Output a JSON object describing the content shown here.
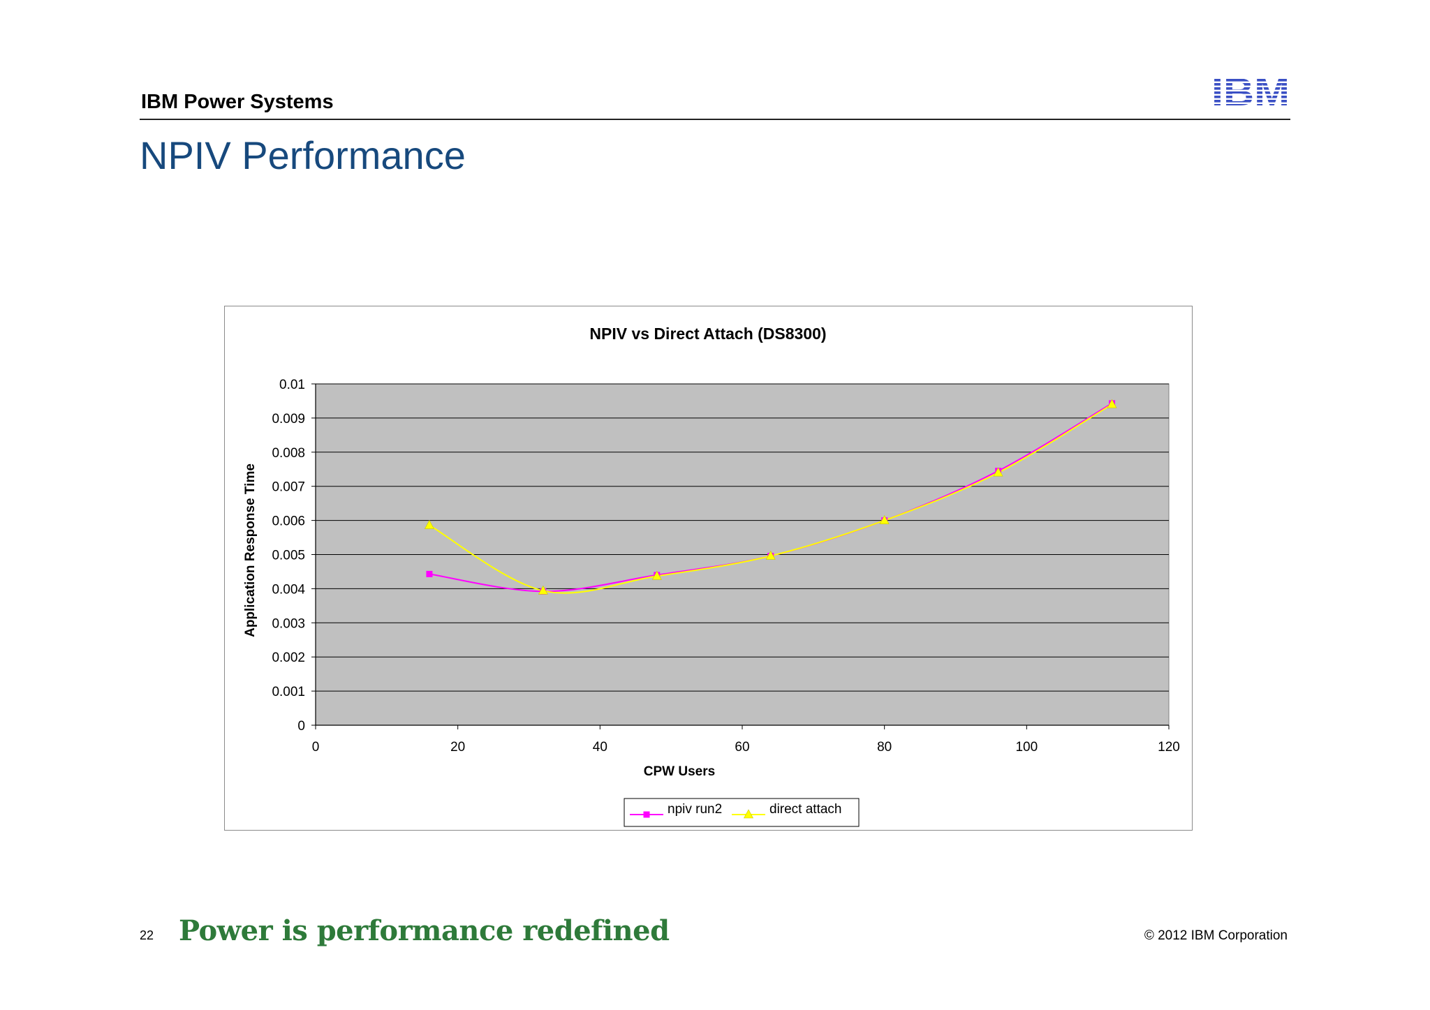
{
  "header": {
    "section": "IBM Power Systems",
    "logo_text": "IBM"
  },
  "slide": {
    "title": "NPIV Performance"
  },
  "footer": {
    "page_number": "22",
    "tagline": "Power is performance redefined",
    "copyright": "© 2012 IBM Corporation"
  },
  "colors": {
    "title_blue": "#17497d",
    "plot_bg": "#c0c0c0",
    "npiv": "#ff00ff",
    "direct": "#ffff00",
    "tagline_green": "#2e7a3a",
    "logo_blue": "#3a4fc4"
  },
  "chart_data": {
    "type": "scatter",
    "title": "NPIV vs Direct Attach (DS8300)",
    "xlabel": "CPW Users",
    "ylabel": "Application Response Time",
    "xlim": [
      0,
      120
    ],
    "ylim": [
      0,
      0.01
    ],
    "x_ticks": [
      "0",
      "20",
      "40",
      "60",
      "80",
      "100",
      "120"
    ],
    "y_ticks": [
      "0",
      "0.001",
      "0.002",
      "0.003",
      "0.004",
      "0.005",
      "0.006",
      "0.007",
      "0.008",
      "0.009",
      "0.01"
    ],
    "grid": true,
    "smoothed_lines": true,
    "legend_position": "bottom",
    "series": [
      {
        "name": "npiv run2",
        "marker": "square",
        "color": "#ff00ff",
        "points": [
          [
            16,
            0.00443
          ],
          [
            32,
            0.00392
          ],
          [
            48,
            0.0044
          ],
          [
            64,
            0.00496
          ],
          [
            80,
            0.006
          ],
          [
            96,
            0.00745
          ],
          [
            112,
            0.00943
          ]
        ]
      },
      {
        "name": "direct attach",
        "marker": "triangle",
        "color": "#ffff00",
        "points": [
          [
            16,
            0.00586
          ],
          [
            32,
            0.00394
          ],
          [
            48,
            0.00437
          ],
          [
            64,
            0.00496
          ],
          [
            80,
            0.006
          ],
          [
            96,
            0.0074
          ],
          [
            112,
            0.0094
          ]
        ]
      }
    ]
  }
}
